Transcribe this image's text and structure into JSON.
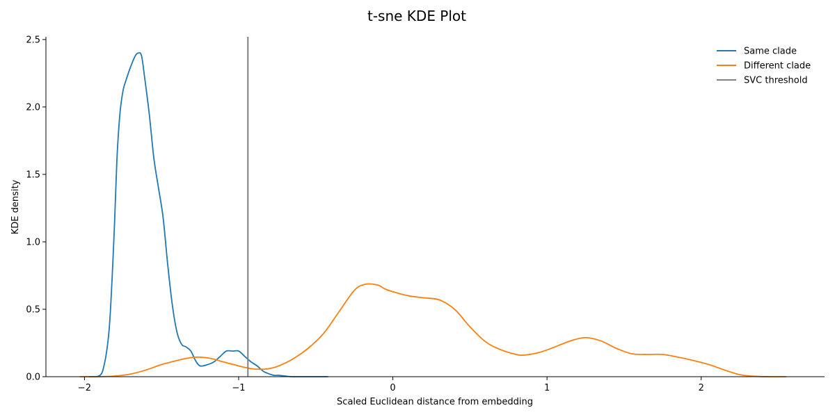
{
  "chart_data": {
    "type": "line",
    "title": "t-sne KDE Plot",
    "xlabel": "Scaled Euclidean distance from embedding",
    "ylabel": "KDE density",
    "xlim": [
      -2.25,
      2.8
    ],
    "ylim": [
      0,
      2.52
    ],
    "xticks": [
      -2,
      -1,
      0,
      1,
      2
    ],
    "xtick_labels": [
      "−2",
      "−1",
      "0",
      "1",
      "2"
    ],
    "yticks": [
      0,
      0.5,
      1,
      1.5,
      2,
      2.5
    ],
    "ytick_labels": [
      "0.0",
      "0.5",
      "1.0",
      "1.5",
      "2.0",
      "2.5"
    ],
    "grid": false,
    "legend_position": "top-right",
    "series": [
      {
        "name": "Same clade",
        "color": "#1f77b4",
        "x": [
          -1.97,
          -1.92,
          -1.88,
          -1.84,
          -1.81,
          -1.79,
          -1.77,
          -1.75,
          -1.73,
          -1.7,
          -1.67,
          -1.65,
          -1.63,
          -1.61,
          -1.58,
          -1.55,
          -1.52,
          -1.49,
          -1.46,
          -1.43,
          -1.4,
          -1.37,
          -1.34,
          -1.31,
          -1.28,
          -1.25,
          -1.2,
          -1.16,
          -1.12,
          -1.08,
          -1.04,
          -1.0,
          -0.96,
          -0.92,
          -0.88,
          -0.84,
          -0.8,
          -0.77,
          -0.74,
          -0.7,
          -0.66,
          -0.62,
          -0.58,
          -0.54,
          -0.5,
          -0.46,
          -0.42
        ],
        "values": [
          0.0,
          0.0,
          0.05,
          0.35,
          1.0,
          1.6,
          1.95,
          2.12,
          2.2,
          2.3,
          2.38,
          2.4,
          2.38,
          2.22,
          1.95,
          1.62,
          1.4,
          1.18,
          0.83,
          0.53,
          0.33,
          0.24,
          0.22,
          0.19,
          0.12,
          0.08,
          0.09,
          0.11,
          0.15,
          0.19,
          0.19,
          0.19,
          0.15,
          0.11,
          0.08,
          0.04,
          0.02,
          0.01,
          0.01,
          0.005,
          0.0,
          0.0,
          0.0,
          0.0,
          0.0,
          0.0,
          0.0
        ]
      },
      {
        "name": "Different clade",
        "color": "#ff7f0e",
        "x": [
          -2.03,
          -1.9,
          -1.8,
          -1.7,
          -1.6,
          -1.5,
          -1.4,
          -1.32,
          -1.25,
          -1.18,
          -1.1,
          -1.0,
          -0.92,
          -0.85,
          -0.78,
          -0.72,
          -0.65,
          -0.55,
          -0.45,
          -0.35,
          -0.25,
          -0.18,
          -0.1,
          -0.05,
          0.0,
          0.1,
          0.2,
          0.3,
          0.4,
          0.5,
          0.6,
          0.7,
          0.8,
          0.85,
          0.95,
          1.05,
          1.15,
          1.25,
          1.35,
          1.45,
          1.55,
          1.65,
          1.75,
          1.85,
          1.95,
          2.05,
          2.15,
          2.25,
          2.35,
          2.45,
          2.55
        ],
        "values": [
          0.0,
          0.0,
          0.005,
          0.02,
          0.05,
          0.09,
          0.12,
          0.14,
          0.145,
          0.135,
          0.11,
          0.08,
          0.06,
          0.055,
          0.065,
          0.09,
          0.13,
          0.21,
          0.32,
          0.48,
          0.64,
          0.685,
          0.68,
          0.65,
          0.63,
          0.6,
          0.585,
          0.57,
          0.5,
          0.37,
          0.26,
          0.2,
          0.165,
          0.16,
          0.18,
          0.22,
          0.265,
          0.29,
          0.265,
          0.21,
          0.17,
          0.165,
          0.165,
          0.145,
          0.12,
          0.09,
          0.05,
          0.015,
          0.003,
          0.0,
          0.0
        ]
      },
      {
        "name": "SVC threshold",
        "color": "#808080",
        "type": "vline",
        "x": -0.94
      }
    ]
  }
}
